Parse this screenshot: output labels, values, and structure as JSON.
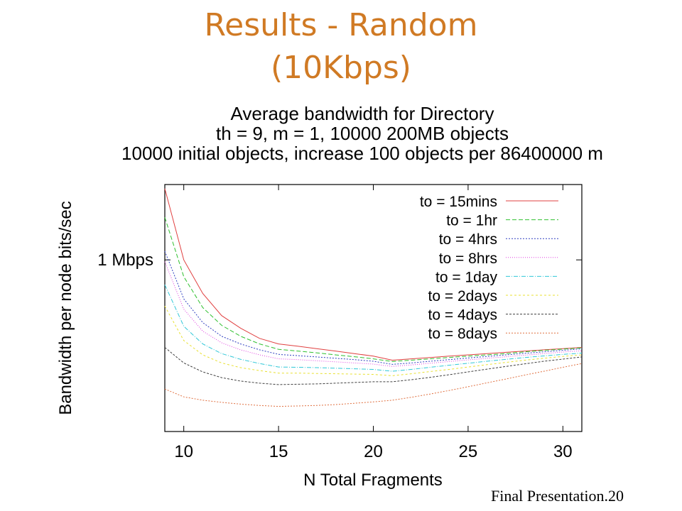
{
  "slide": {
    "title_line1": "Results - Random",
    "title_line2": "(10Kbps)",
    "footer": "Final Presentation.20"
  },
  "colors": {
    "title": "#d07a24",
    "axis": "#000000"
  },
  "chart_data": {
    "type": "line",
    "title_lines": [
      "Average bandwidth for Directory",
      "th = 9, m = 1, 10000 200MB objects",
      "10000 initial objects, increase 100 objects per 86400000 m"
    ],
    "xlabel": "N Total Fragments",
    "ylabel": "Bandwidth per node bits/sec",
    "xlim": [
      9,
      31
    ],
    "y_scale": "log",
    "x_ticks": [
      10,
      15,
      20,
      25,
      30
    ],
    "y_ticks": [
      {
        "value": 1000000,
        "label": "1 Mbps"
      }
    ],
    "ylim": [
      150000,
      2300000
    ],
    "grid": false,
    "legend_position": "top-right",
    "x": [
      9,
      10,
      11,
      12,
      13,
      14,
      15,
      16,
      17,
      18,
      19,
      20,
      21,
      22,
      23,
      24,
      25,
      26,
      27,
      28,
      29,
      30,
      31
    ],
    "series": [
      {
        "name": "to = 15mins",
        "color": "#e04040",
        "dash": "",
        "values": [
          2200000,
          1000000,
          690000,
          540000,
          470000,
          420000,
          395000,
          385000,
          375000,
          365000,
          355000,
          345000,
          330000,
          335000,
          340000,
          345000,
          350000,
          355000,
          360000,
          365000,
          370000,
          375000,
          380000
        ]
      },
      {
        "name": "to = 1hr",
        "color": "#30c030",
        "dash": "6,3",
        "values": [
          1600000,
          830000,
          590000,
          485000,
          430000,
          395000,
          372000,
          365000,
          358000,
          350000,
          343000,
          335000,
          325000,
          330000,
          335000,
          340000,
          345000,
          350000,
          355000,
          362000,
          368000,
          373000,
          378000
        ]
      },
      {
        "name": "to = 4hrs",
        "color": "#3040c0",
        "dash": "2,2",
        "values": [
          1100000,
          650000,
          500000,
          430000,
          395000,
          370000,
          352000,
          347000,
          342000,
          337000,
          332000,
          326000,
          315000,
          320000,
          326000,
          332000,
          338000,
          344000,
          350000,
          356000,
          362000,
          368000,
          374000
        ]
      },
      {
        "name": "to = 8hrs",
        "color": "#e040e0",
        "dash": "1,2",
        "values": [
          980000,
          580000,
          455000,
          400000,
          370000,
          350000,
          335000,
          332000,
          328000,
          324000,
          320000,
          316000,
          308000,
          313000,
          319000,
          325000,
          331000,
          337000,
          343000,
          349000,
          355000,
          361000,
          366000
        ]
      },
      {
        "name": "to = 1day",
        "color": "#30c8d8",
        "dash": "6,2,1,2",
        "values": [
          760000,
          480000,
          395000,
          355000,
          333000,
          318000,
          306000,
          305000,
          304000,
          302000,
          300000,
          298000,
          292000,
          298000,
          305000,
          312000,
          319000,
          326000,
          333000,
          340000,
          346000,
          352000,
          357000
        ]
      },
      {
        "name": "to = 2days",
        "color": "#e8e030",
        "dash": "3,3",
        "values": [
          600000,
          410000,
          350000,
          320000,
          304000,
          294000,
          286000,
          286000,
          285000,
          284000,
          283000,
          282000,
          278000,
          284000,
          291000,
          298000,
          306000,
          314000,
          322000,
          330000,
          337000,
          344000,
          350000
        ]
      },
      {
        "name": "to = 4days",
        "color": "#404040",
        "dash": "3,2",
        "values": [
          380000,
          320000,
          290000,
          272000,
          262000,
          256000,
          252000,
          253000,
          254000,
          256000,
          258000,
          260000,
          260000,
          266000,
          273000,
          281000,
          290000,
          299000,
          308000,
          317000,
          326000,
          334000,
          342000
        ]
      },
      {
        "name": "to = 8days",
        "color": "#e07040",
        "dash": "2,2",
        "values": [
          240000,
          220000,
          212000,
          207000,
          203000,
          200000,
          198000,
          199000,
          200000,
          202000,
          205000,
          208000,
          212000,
          219000,
          227000,
          236000,
          246000,
          257000,
          268000,
          280000,
          292000,
          305000,
          318000
        ]
      }
    ]
  }
}
